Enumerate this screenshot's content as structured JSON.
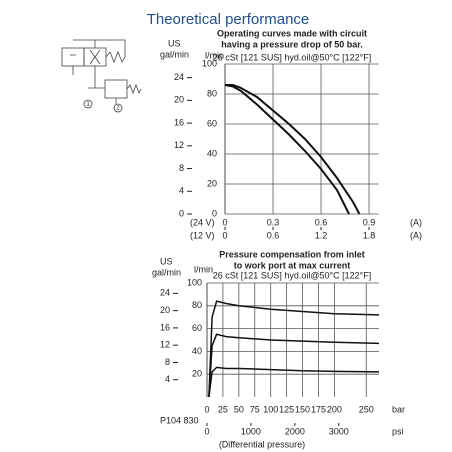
{
  "title": "Theoretical performance",
  "code": "P104 830",
  "diagram": {
    "ports": [
      "1",
      "2"
    ]
  },
  "chart_data": [
    {
      "type": "line",
      "title": "Operating curves made with circuit",
      "title2": "having a pressure drop of 50 bar.",
      "subtitle": "26 cSt [121 SUS] hyd.oil@50°C [122°F]",
      "y_label": "l/min",
      "y2_label_1": "US",
      "y2_label_2": "gal/min",
      "x_label": "(24 V)",
      "x2_label": "(12 V)",
      "x_unit": "(A)",
      "x2_unit": "(A)",
      "ylim": [
        0,
        100
      ],
      "yticks": [
        0,
        20,
        40,
        60,
        80,
        100
      ],
      "y2lim": [
        0,
        26.4
      ],
      "y2ticks": [
        0,
        4,
        8,
        12,
        16,
        20,
        24
      ],
      "xlim": [
        0,
        0.96
      ],
      "xticks": [
        0,
        0.3,
        0.6,
        0.9
      ],
      "x2lim": [
        0,
        1.92
      ],
      "x2ticks": [
        0,
        0.6,
        1.2,
        1.8
      ],
      "grid": true,
      "series": [
        {
          "color": "#111111",
          "x": [
            0,
            0.05,
            0.1,
            0.2,
            0.3,
            0.4,
            0.5,
            0.6,
            0.7,
            0.8,
            0.84
          ],
          "values": [
            86,
            86,
            84,
            78,
            69,
            60,
            50,
            38,
            24,
            8,
            0
          ]
        },
        {
          "color": "#111111",
          "x": [
            0,
            0.05,
            0.1,
            0.2,
            0.3,
            0.4,
            0.5,
            0.6,
            0.7,
            0.775
          ],
          "values": [
            86,
            85,
            82,
            73,
            63,
            53,
            42,
            30,
            16,
            0
          ]
        }
      ]
    },
    {
      "type": "line",
      "title": "Pressure compensation from inlet",
      "title2": "to work port at max current",
      "subtitle": "26 cSt [121 SUS] hyd.oil@50°C [122°F]",
      "y_label": "l/min",
      "y2_label_1": "US",
      "y2_label_2": "gal/min",
      "x_label": "bar",
      "x2_label": "psi",
      "x2_note": "(Differential pressure)",
      "ylim": [
        0,
        100
      ],
      "yticks": [
        20,
        40,
        60,
        80,
        100
      ],
      "y2lim": [
        0,
        26.4
      ],
      "y2ticks": [
        4,
        8,
        12,
        16,
        20,
        24
      ],
      "xlim": [
        0,
        270
      ],
      "xticks": [
        0,
        25,
        50,
        75,
        100,
        125,
        150,
        175,
        200,
        250
      ],
      "x2lim": [
        0,
        3916
      ],
      "x2ticks": [
        0,
        1000,
        2000,
        3000
      ],
      "grid": true,
      "series": [
        {
          "color": "#111111",
          "x": [
            3,
            8,
            15,
            30,
            50,
            100,
            150,
            200,
            270
          ],
          "values": [
            0,
            70,
            84,
            82,
            80,
            77,
            75,
            73,
            72
          ]
        },
        {
          "color": "#111111",
          "x": [
            3,
            8,
            15,
            30,
            50,
            100,
            150,
            200,
            270
          ],
          "values": [
            0,
            45,
            55,
            53,
            52,
            50,
            49,
            48,
            47
          ]
        },
        {
          "color": "#111111",
          "x": [
            3,
            8,
            15,
            30,
            50,
            100,
            150,
            200,
            270
          ],
          "values": [
            0,
            22,
            26,
            25,
            25,
            24,
            23,
            22.5,
            22
          ]
        }
      ]
    }
  ]
}
